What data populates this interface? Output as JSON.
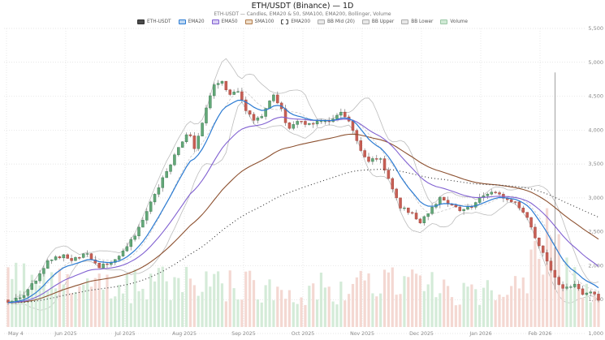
{
  "header": {
    "title": "ETH/USDT (Binance) — 1D",
    "subtitle": "ETH-USDT — Candles, EMA20 & 50, SMA100, EMA200, Bollinger, Volume"
  },
  "legend": {
    "items": [
      {
        "label": "ETH-USDT",
        "swatch": "#4a4a4a",
        "border": "#2f2f2f",
        "dashed": false
      },
      {
        "label": "EMA20",
        "swatch": "#bdd7f2",
        "border": "#2b7bd3",
        "dashed": false
      },
      {
        "label": "EMA50",
        "swatch": "#d9cef4",
        "border": "#8161d1",
        "dashed": false
      },
      {
        "label": "SMA100",
        "swatch": "#eedcc8",
        "border": "#b07a4a",
        "dashed": false
      },
      {
        "label": "EMA200",
        "swatch": "#ffffff",
        "border": "#444444",
        "dashed": true
      },
      {
        "label": "BB Mid (20)",
        "swatch": "#e8e8e8",
        "border": "#ababab",
        "dashed": false
      },
      {
        "label": "BB Upper",
        "swatch": "#e8e8e8",
        "border": "#ababab",
        "dashed": false
      },
      {
        "label": "BB Lower",
        "swatch": "#e8e8e8",
        "border": "#ababab",
        "dashed": false
      },
      {
        "label": "Volume",
        "swatch": "#cfe9d4",
        "border": "#9cc7a6",
        "dashed": false
      }
    ]
  },
  "axes": {
    "y_ticks": [
      "5,500",
      "5,000",
      "4,500",
      "4,000",
      "3,500",
      "3,000",
      "2,500",
      "2,000",
      "1,500",
      "1,000"
    ],
    "x_ticks": [
      "May 4",
      "Jun 2025",
      "Jul 2025",
      "Aug 2025",
      "Sep 2025",
      "Oct 2025",
      "Nov 2025",
      "Dec 2025",
      "Jan 2026",
      "Feb 2026"
    ]
  },
  "chart_data": {
    "type": "candlestick",
    "symbol": "ETH/USDT",
    "exchange": "Binance",
    "timeframe": "1D",
    "title": "ETH/USDT (Binance) — 1D",
    "y_range": [
      1000,
      5500
    ],
    "grid": true,
    "legend_position": "top",
    "indicators": [
      "EMA20",
      "EMA50",
      "SMA100",
      "EMA200",
      "Bollinger (20)",
      "Volume"
    ],
    "price_path": [
      [
        10,
        1470
      ],
      [
        25,
        1520
      ],
      [
        45,
        1790
      ],
      [
        60,
        2070
      ],
      [
        75,
        2150
      ],
      [
        90,
        2090
      ],
      [
        105,
        2190
      ],
      [
        122,
        1970
      ],
      [
        132,
        2030
      ],
      [
        145,
        2120
      ],
      [
        160,
        2340
      ],
      [
        172,
        2560
      ],
      [
        185,
        2920
      ],
      [
        198,
        3240
      ],
      [
        210,
        3480
      ],
      [
        222,
        3800
      ],
      [
        232,
        3990
      ],
      [
        240,
        3715
      ],
      [
        252,
        4255
      ],
      [
        262,
        4640
      ],
      [
        272,
        4735
      ],
      [
        282,
        4495
      ],
      [
        292,
        4590
      ],
      [
        302,
        4315
      ],
      [
        312,
        4135
      ],
      [
        322,
        4195
      ],
      [
        335,
        4520
      ],
      [
        345,
        4375
      ],
      [
        355,
        3990
      ],
      [
        368,
        4135
      ],
      [
        380,
        4075
      ],
      [
        395,
        4160
      ],
      [
        408,
        4135
      ],
      [
        420,
        4255
      ],
      [
        432,
        4110
      ],
      [
        443,
        3715
      ],
      [
        455,
        3535
      ],
      [
        468,
        3595
      ],
      [
        480,
        3235
      ],
      [
        492,
        2875
      ],
      [
        505,
        2790
      ],
      [
        518,
        2635
      ],
      [
        530,
        2840
      ],
      [
        542,
        2990
      ],
      [
        555,
        2910
      ],
      [
        568,
        2790
      ],
      [
        580,
        2875
      ],
      [
        595,
        3030
      ],
      [
        608,
        3080
      ],
      [
        622,
        2990
      ],
      [
        635,
        2910
      ],
      [
        648,
        2720
      ],
      [
        660,
        2395
      ],
      [
        672,
        2120
      ],
      [
        684,
        1790
      ],
      [
        695,
        1670
      ],
      [
        708,
        1705
      ],
      [
        720,
        1550
      ],
      [
        730,
        1635
      ],
      [
        737,
        1490
      ]
    ],
    "volume_path": [
      [
        10,
        0.92
      ],
      [
        20,
        0.75
      ],
      [
        35,
        0.45
      ],
      [
        50,
        0.55
      ],
      [
        65,
        0.6
      ],
      [
        80,
        0.45
      ],
      [
        95,
        0.4
      ],
      [
        110,
        0.45
      ],
      [
        125,
        0.5
      ],
      [
        140,
        0.4
      ],
      [
        155,
        0.45
      ],
      [
        170,
        0.5
      ],
      [
        185,
        0.55
      ],
      [
        200,
        0.5
      ],
      [
        215,
        0.55
      ],
      [
        230,
        0.5
      ],
      [
        245,
        0.45
      ],
      [
        260,
        0.55
      ],
      [
        275,
        0.5
      ],
      [
        290,
        0.45
      ],
      [
        305,
        0.5
      ],
      [
        320,
        0.4
      ],
      [
        335,
        0.45
      ],
      [
        350,
        0.55
      ],
      [
        365,
        0.45
      ],
      [
        380,
        0.4
      ],
      [
        395,
        0.45
      ],
      [
        410,
        0.4
      ],
      [
        425,
        0.45
      ],
      [
        440,
        0.65
      ],
      [
        455,
        0.5
      ],
      [
        470,
        0.45
      ],
      [
        485,
        0.55
      ],
      [
        500,
        0.5
      ],
      [
        515,
        0.45
      ],
      [
        530,
        0.5
      ],
      [
        545,
        0.45
      ],
      [
        560,
        0.4
      ],
      [
        575,
        0.45
      ],
      [
        590,
        0.4
      ],
      [
        605,
        0.45
      ],
      [
        620,
        0.4
      ],
      [
        635,
        0.45
      ],
      [
        650,
        0.6
      ],
      [
        662,
        0.8
      ],
      [
        675,
        1.0
      ],
      [
        688,
        0.85
      ],
      [
        700,
        0.6
      ],
      [
        712,
        0.5
      ],
      [
        725,
        0.45
      ],
      [
        737,
        0.35
      ]
    ],
    "spike": {
      "x": 684,
      "high": 4850,
      "low": 1650
    },
    "colors": {
      "up": "#63a878",
      "up_border": "#45805a",
      "down": "#c75f55",
      "down_border": "#a84b42",
      "wick": "#7a7a7a",
      "vol_up": "#cfe9d4",
      "vol_down": "#f3d4cd",
      "ema20": "#2b7bd3",
      "ema50": "#8161d1",
      "sma100": "#8d5130",
      "ema200": "#2f2f2f",
      "bb": "#bcbcbc",
      "bb_mid": "#c9c9c9",
      "grid": "#dedede",
      "tick_text": "#8a8a8a"
    }
  }
}
